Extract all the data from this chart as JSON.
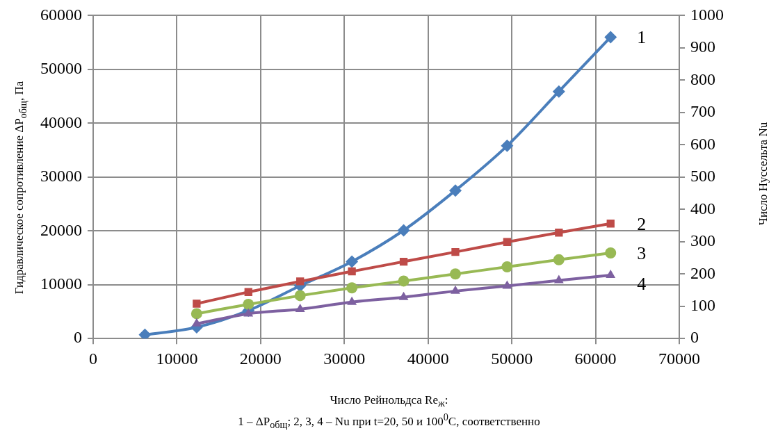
{
  "chart_data": {
    "type": "line",
    "xlabel": "Число Рейнольдса Re$_{ж}$:\n1 – ΔP$_{общ}$; 2, 3, 4 – Nu при t=20, 50 и 100$^{0}$C, соответственно",
    "ylabel": "Гидравлическое сопротивление ΔP$_{общ}$, Па",
    "y2label": "Число Нуссельта Nu",
    "x": [
      6180,
      12360,
      18540,
      24720,
      30900,
      37080,
      43260,
      49440,
      55620,
      61800
    ],
    "xlim": [
      0,
      70000
    ],
    "xticks": [
      0,
      10000,
      20000,
      30000,
      40000,
      50000,
      60000,
      70000
    ],
    "ylim": [
      0,
      60000
    ],
    "yticks": [
      0,
      10000,
      20000,
      30000,
      40000,
      50000,
      60000
    ],
    "y2lim": [
      0,
      1000
    ],
    "y2ticks": [
      0,
      100,
      200,
      300,
      400,
      500,
      600,
      700,
      800,
      900,
      1000
    ],
    "grid": true,
    "legend": false,
    "line_style": "solid",
    "series": [
      {
        "name": "1",
        "color": "#4a7ebb",
        "marker": "diamond",
        "values": [
          700,
          2100,
          5200,
          9800,
          14300,
          20100,
          27500,
          35800,
          45900,
          56000
        ]
      },
      {
        "name": "2",
        "color": "#be4b48",
        "marker": "square",
        "axis": "y2",
        "values": [
          null,
          108,
          144,
          177,
          208,
          238,
          268,
          299,
          328,
          356
        ]
      },
      {
        "name": "3",
        "color": "#98b954",
        "marker": "circle",
        "axis": "y2",
        "values": [
          null,
          77,
          106,
          133,
          157,
          178,
          200,
          222,
          244,
          265
        ]
      },
      {
        "name": "4",
        "color": "#7d60a0",
        "marker": "triangle",
        "axis": "y2",
        "values": [
          null,
          46,
          77,
          91,
          113,
          128,
          147,
          163,
          180,
          196
        ]
      }
    ]
  }
}
